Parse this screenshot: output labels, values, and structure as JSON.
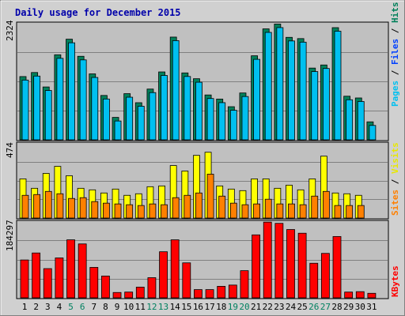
{
  "chart_data": [
    {
      "type": "bar",
      "title": "Daily usage for December 2015",
      "ylabel_max": "2324",
      "legend": [
        "Pages",
        "Files",
        "Hits"
      ],
      "colors": {
        "pages": "#00c0f0",
        "files": "#0040ff",
        "hits": "#00805a"
      },
      "categories": [
        "1",
        "2",
        "3",
        "4",
        "5",
        "6",
        "7",
        "8",
        "9",
        "10",
        "11",
        "12",
        "13",
        "14",
        "15",
        "16",
        "17",
        "18",
        "19",
        "20",
        "21",
        "22",
        "23",
        "24",
        "25",
        "26",
        "27",
        "28",
        "29",
        "30",
        "31"
      ],
      "ylim": [
        0,
        2324
      ],
      "series": [
        {
          "name": "Hits",
          "values": [
            1266,
            1347,
            1058,
            1702,
            2014,
            1672,
            1320,
            888,
            449,
            924,
            743,
            1016,
            1359,
            2056,
            1339,
            1223,
            898,
            816,
            663,
            938,
            1682,
            2221,
            2317,
            2051,
            2026,
            1436,
            1498,
            2245,
            873,
            838,
            360
          ]
        },
        {
          "name": "Pages",
          "values": [
            1196,
            1276,
            987,
            1631,
            1942,
            1600,
            1248,
            817,
            377,
            853,
            672,
            945,
            1288,
            1985,
            1268,
            1153,
            827,
            744,
            591,
            867,
            1611,
            2150,
            2246,
            1979,
            1955,
            1366,
            1428,
            2174,
            802,
            767,
            288
          ]
        }
      ]
    },
    {
      "type": "bar",
      "ylabel_max": "474",
      "legend": [
        "Sites",
        "Visits"
      ],
      "colors": {
        "sites": "#ff8000",
        "visits": "#ffff00"
      },
      "ylim": [
        0,
        474
      ],
      "series": [
        {
          "name": "Visits",
          "values": [
            250,
            190,
            285,
            330,
            270,
            190,
            180,
            160,
            185,
            145,
            155,
            200,
            205,
            335,
            300,
            400,
            420,
            205,
            185,
            175,
            250,
            250,
            190,
            210,
            180,
            250,
            395,
            160,
            155,
            145
          ]
        },
        {
          "name": "Sites",
          "values": [
            145,
            150,
            170,
            155,
            125,
            130,
            105,
            95,
            90,
            85,
            80,
            90,
            85,
            130,
            145,
            160,
            280,
            140,
            95,
            85,
            90,
            120,
            90,
            90,
            85,
            140,
            170,
            80,
            80,
            80
          ]
        }
      ]
    },
    {
      "type": "bar",
      "ylabel_max": "184297",
      "legend": [
        "KBytes"
      ],
      "colors": {
        "kbytes": "#ff0000"
      },
      "ylim": [
        0,
        184297
      ],
      "series": [
        {
          "name": "KBytes",
          "values": [
            92000,
            109000,
            71000,
            97000,
            141000,
            131000,
            74000,
            53000,
            13000,
            14000,
            26000,
            49000,
            112000,
            141000,
            85000,
            20000,
            20000,
            28000,
            31000,
            66000,
            153000,
            184000,
            181000,
            166000,
            157000,
            84000,
            108000,
            149000,
            14000,
            15000,
            11000
          ]
        }
      ]
    }
  ],
  "weekend_days": [
    5,
    6,
    12,
    13,
    19,
    20,
    26,
    27
  ],
  "weekend_color": "#008060"
}
